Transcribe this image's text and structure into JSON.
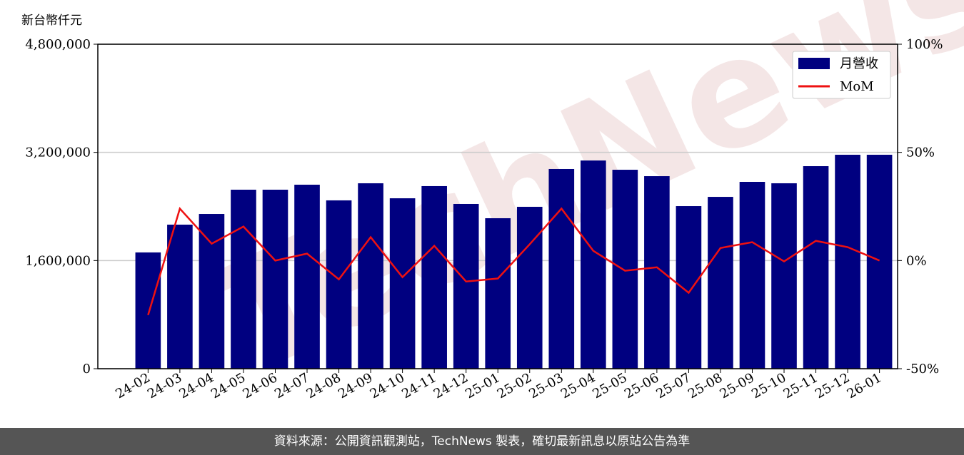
{
  "chart_data": {
    "type": "bar_line",
    "ylabel": "新台幣仟元",
    "watermark": "TechNews",
    "footer": "資料來源：公開資訊觀測站，TechNews 製表，確切最新訊息以原站公告為準",
    "categories": [
      "24-02",
      "24-03",
      "24-04",
      "24-05",
      "24-06",
      "24-07",
      "24-08",
      "24-09",
      "24-10",
      "24-11",
      "24-12",
      "25-01",
      "25-02",
      "25-03",
      "25-04",
      "25-05",
      "25-06",
      "25-07",
      "25-08",
      "25-09",
      "25-10",
      "25-11",
      "25-12",
      "26-01"
    ],
    "series": [
      {
        "name": "月營收",
        "color": "#000080",
        "type": "bar",
        "values": [
          1720000,
          2131000,
          2289000,
          2648000,
          2648000,
          2722000,
          2490000,
          2743000,
          2521000,
          2701000,
          2437000,
          2226000,
          2395000,
          2954000,
          3080000,
          2943000,
          2848000,
          2405000,
          2542000,
          2764000,
          2743000,
          2996000,
          3165000,
          3165000
        ]
      },
      {
        "name": "MoM",
        "color": "#ee1111",
        "type": "line",
        "axis": "y2",
        "values": [
          -25.2,
          24.0,
          7.8,
          15.7,
          0,
          3.2,
          -8.7,
          10.8,
          -7.7,
          6.8,
          -9.7,
          -8.3,
          7.5,
          24.0,
          4.5,
          -4.7,
          -3.1,
          -14.9,
          5.8,
          8.5,
          -0.4,
          9.1,
          6.2,
          0
        ]
      }
    ],
    "ylim": [
      0,
      4800000
    ],
    "yticks": [
      {
        "value": 0,
        "label": "0"
      },
      {
        "value": 1600000,
        "label": "1,600,000"
      },
      {
        "value": 3200000,
        "label": "3,200,000"
      },
      {
        "value": 4800000,
        "label": "4,800,000"
      }
    ],
    "y2lim": [
      -50,
      100
    ],
    "y2ticks": [
      {
        "value": -50,
        "label": "-50%"
      },
      {
        "value": 0,
        "label": "0%"
      },
      {
        "value": 50,
        "label": "50%"
      },
      {
        "value": 100,
        "label": "100%"
      }
    ],
    "grid": true,
    "legend": "upper right"
  }
}
